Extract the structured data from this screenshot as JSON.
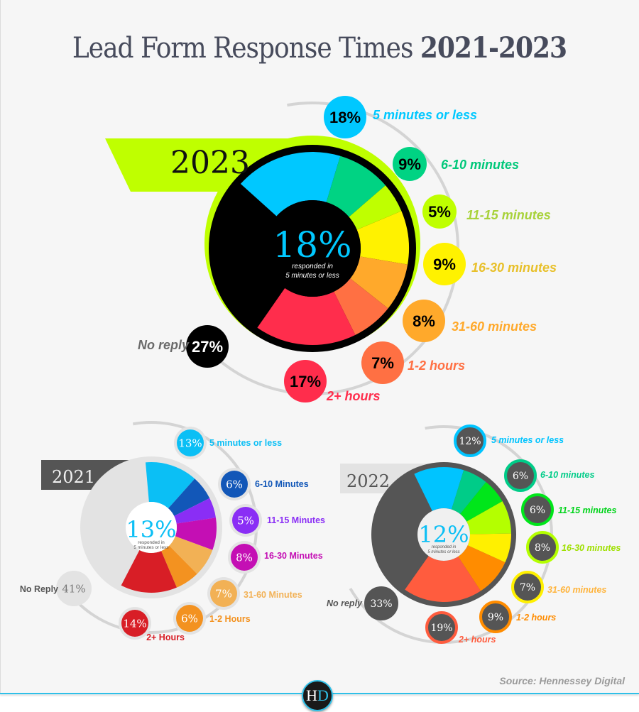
{
  "header": {
    "title_light": "Lead Form Response Times ",
    "title_bold": "2021-2023"
  },
  "footer": {
    "source": "Source: Hennessey Digital",
    "logo_h": "H",
    "logo_d": "D"
  },
  "chart_data": [
    {
      "type": "pie",
      "title": "2023",
      "center_value": "18%",
      "center_caption": [
        "responded in",
        "5 minutes or less"
      ],
      "categories": [
        "5 minutes or less",
        "6-10 minutes",
        "11-15 minutes",
        "16-30 minutes",
        "31-60 minutes",
        "1-2 hours",
        "2+ hours",
        "No reply"
      ],
      "values": [
        18,
        9,
        5,
        9,
        8,
        7,
        17,
        27
      ],
      "labels": [
        "18%",
        "9%",
        "5%",
        "9%",
        "8%",
        "7%",
        "17%",
        "27%"
      ],
      "colors": [
        "#00c8ff",
        "#00d383",
        "#bfff00",
        "#fff200",
        "#ffa92b",
        "#ff7043",
        "#ff2d4c",
        "#000000"
      ],
      "label_colors": [
        "#00c8ff",
        "#00c87a",
        "#a8d23a",
        "#e8c02a",
        "#ffa92b",
        "#ff7043",
        "#ff2d4c",
        "#6a6a6a"
      ]
    },
    {
      "type": "pie",
      "title": "2021",
      "center_value": "13%",
      "center_caption": [
        "responded in",
        "5 minutes or less"
      ],
      "categories": [
        "5 minutes or less",
        "6-10 Minutes",
        "11-15 Minutes",
        "16-30 Minutes",
        "31-60 Minutes",
        "1-2 Hours",
        "2+ Hours",
        "No Reply"
      ],
      "values": [
        13,
        6,
        5,
        8,
        7,
        6,
        14,
        41
      ],
      "labels": [
        "13%",
        "6%",
        "5%",
        "8%",
        "7%",
        "6%",
        "14%",
        "41%"
      ],
      "colors": [
        "#0bbff5",
        "#1257b8",
        "#8a2ef5",
        "#c40fb4",
        "#f2b155",
        "#f39220",
        "#d81e26",
        "#e3e3e3"
      ],
      "label_colors": [
        "#0bbff5",
        "#1257b8",
        "#8a2ef5",
        "#c40fb4",
        "#f2b155",
        "#f39220",
        "#d81e26",
        "#555555"
      ]
    },
    {
      "type": "pie",
      "title": "2022",
      "center_value": "12%",
      "center_caption": [
        "responded in",
        "5 minutes or less"
      ],
      "categories": [
        "5 minutes or less",
        "6-10 minutes",
        "11-15 minutes",
        "16-30 minutes",
        "31-60 minutes",
        "1-2 hours",
        "2+ hours",
        "No reply"
      ],
      "values": [
        12,
        6,
        6,
        8,
        7,
        9,
        19,
        33
      ],
      "labels": [
        "12%",
        "6%",
        "6%",
        "8%",
        "7%",
        "9%",
        "19%",
        "33%"
      ],
      "colors": [
        "#00c4ff",
        "#00cc88",
        "#00e61a",
        "#b4ff00",
        "#fff000",
        "#ff8c00",
        "#ff5c3e",
        "#555555"
      ],
      "label_colors": [
        "#00c4ff",
        "#00cc88",
        "#00d41a",
        "#9fe000",
        "#ffb43c",
        "#ff8c00",
        "#ff5c3e",
        "#555555"
      ]
    }
  ]
}
